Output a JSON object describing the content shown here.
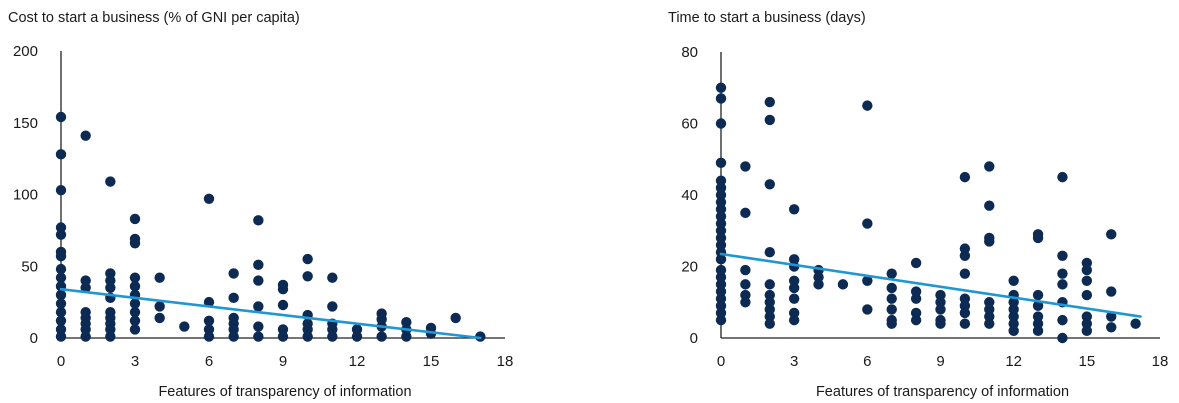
{
  "colors": {
    "point": "#0d2a52",
    "trend": "#1f97d4",
    "axis": "#222222",
    "text": "#1a1a1a"
  },
  "chart_data": [
    {
      "type": "scatter",
      "title": "Cost to start a business (% of GNI per capita)",
      "xlabel": "Features of transparency of information",
      "ylabel": "",
      "xlim": [
        0,
        18
      ],
      "ylim": [
        0,
        200
      ],
      "xticks": [
        0,
        3,
        6,
        9,
        12,
        15,
        18
      ],
      "yticks": [
        0,
        50,
        100,
        150,
        200
      ],
      "grid": false,
      "trendline": [
        [
          0,
          34
        ],
        [
          17,
          0
        ]
      ],
      "points": [
        [
          0,
          154
        ],
        [
          0,
          128
        ],
        [
          0,
          103
        ],
        [
          0,
          77
        ],
        [
          0,
          72
        ],
        [
          0,
          60
        ],
        [
          0,
          57
        ],
        [
          0,
          48
        ],
        [
          0,
          42
        ],
        [
          0,
          36
        ],
        [
          0,
          30
        ],
        [
          0,
          24
        ],
        [
          0,
          18
        ],
        [
          0,
          12
        ],
        [
          0,
          6
        ],
        [
          0,
          1
        ],
        [
          1,
          141
        ],
        [
          1,
          40
        ],
        [
          1,
          35
        ],
        [
          1,
          18
        ],
        [
          1,
          14
        ],
        [
          1,
          10
        ],
        [
          1,
          6
        ],
        [
          1,
          1
        ],
        [
          2,
          109
        ],
        [
          2,
          45
        ],
        [
          2,
          40
        ],
        [
          2,
          35
        ],
        [
          2,
          28
        ],
        [
          2,
          18
        ],
        [
          2,
          14
        ],
        [
          2,
          10
        ],
        [
          2,
          6
        ],
        [
          2,
          1
        ],
        [
          3,
          83
        ],
        [
          3,
          69
        ],
        [
          3,
          66
        ],
        [
          3,
          42
        ],
        [
          3,
          36
        ],
        [
          3,
          30
        ],
        [
          3,
          24
        ],
        [
          3,
          18
        ],
        [
          3,
          12
        ],
        [
          3,
          6
        ],
        [
          4,
          42
        ],
        [
          4,
          22
        ],
        [
          4,
          14
        ],
        [
          5,
          8
        ],
        [
          6,
          97
        ],
        [
          6,
          25
        ],
        [
          6,
          12
        ],
        [
          6,
          6
        ],
        [
          6,
          1
        ],
        [
          7,
          45
        ],
        [
          7,
          28
        ],
        [
          7,
          14
        ],
        [
          7,
          10
        ],
        [
          7,
          6
        ],
        [
          7,
          1
        ],
        [
          8,
          82
        ],
        [
          8,
          51
        ],
        [
          8,
          40
        ],
        [
          8,
          22
        ],
        [
          8,
          8
        ],
        [
          8,
          1
        ],
        [
          9,
          37
        ],
        [
          9,
          34
        ],
        [
          9,
          23
        ],
        [
          9,
          6
        ],
        [
          9,
          1
        ],
        [
          10,
          55
        ],
        [
          10,
          43
        ],
        [
          10,
          16
        ],
        [
          10,
          10
        ],
        [
          10,
          6
        ],
        [
          10,
          1
        ],
        [
          11,
          42
        ],
        [
          11,
          22
        ],
        [
          11,
          10
        ],
        [
          11,
          6
        ],
        [
          11,
          1
        ],
        [
          12,
          6
        ],
        [
          12,
          1
        ],
        [
          13,
          17
        ],
        [
          13,
          13
        ],
        [
          13,
          8
        ],
        [
          13,
          1
        ],
        [
          14,
          11
        ],
        [
          14,
          6
        ],
        [
          14,
          1
        ],
        [
          15,
          7
        ],
        [
          15,
          3
        ],
        [
          16,
          14
        ],
        [
          17,
          1
        ]
      ]
    },
    {
      "type": "scatter",
      "title": "Time to start a business (days)",
      "xlabel": "Features of transparency of information",
      "ylabel": "",
      "xlim": [
        0,
        18
      ],
      "ylim": [
        0,
        80
      ],
      "xticks": [
        0,
        3,
        6,
        9,
        12,
        15,
        18
      ],
      "yticks": [
        0,
        20,
        40,
        60,
        80
      ],
      "grid": false,
      "trendline": [
        [
          0,
          23.5
        ],
        [
          17.2,
          6
        ]
      ],
      "points": [
        [
          0,
          70
        ],
        [
          0,
          67
        ],
        [
          0,
          60
        ],
        [
          0,
          49
        ],
        [
          0,
          44
        ],
        [
          0,
          42
        ],
        [
          0,
          40
        ],
        [
          0,
          38
        ],
        [
          0,
          36
        ],
        [
          0,
          34
        ],
        [
          0,
          32
        ],
        [
          0,
          30
        ],
        [
          0,
          28
        ],
        [
          0,
          26
        ],
        [
          0,
          24
        ],
        [
          0,
          22
        ],
        [
          0,
          19
        ],
        [
          0,
          17
        ],
        [
          0,
          15
        ],
        [
          0,
          13
        ],
        [
          0,
          11
        ],
        [
          0,
          9
        ],
        [
          0,
          7
        ],
        [
          0,
          5
        ],
        [
          1,
          48
        ],
        [
          1,
          35
        ],
        [
          1,
          19
        ],
        [
          1,
          15
        ],
        [
          1,
          12
        ],
        [
          1,
          10
        ],
        [
          2,
          66
        ],
        [
          2,
          61
        ],
        [
          2,
          43
        ],
        [
          2,
          24
        ],
        [
          2,
          15
        ],
        [
          2,
          12
        ],
        [
          2,
          10
        ],
        [
          2,
          8
        ],
        [
          2,
          6
        ],
        [
          2,
          4
        ],
        [
          3,
          36
        ],
        [
          3,
          22
        ],
        [
          3,
          20
        ],
        [
          3,
          16
        ],
        [
          3,
          14
        ],
        [
          3,
          11
        ],
        [
          3,
          7
        ],
        [
          3,
          5
        ],
        [
          4,
          19
        ],
        [
          4,
          17
        ],
        [
          4,
          15
        ],
        [
          5,
          15
        ],
        [
          6,
          65
        ],
        [
          6,
          32
        ],
        [
          6,
          16
        ],
        [
          6,
          8
        ],
        [
          7,
          18
        ],
        [
          7,
          14
        ],
        [
          7,
          11
        ],
        [
          7,
          8
        ],
        [
          7,
          5
        ],
        [
          7,
          4
        ],
        [
          8,
          21
        ],
        [
          8,
          13
        ],
        [
          8,
          11
        ],
        [
          8,
          7
        ],
        [
          8,
          5
        ],
        [
          9,
          12
        ],
        [
          9,
          10
        ],
        [
          9,
          8
        ],
        [
          9,
          5
        ],
        [
          9,
          4
        ],
        [
          10,
          45
        ],
        [
          10,
          25
        ],
        [
          10,
          23
        ],
        [
          10,
          18
        ],
        [
          10,
          11
        ],
        [
          10,
          9
        ],
        [
          10,
          7
        ],
        [
          10,
          4
        ],
        [
          11,
          48
        ],
        [
          11,
          37
        ],
        [
          11,
          28
        ],
        [
          11,
          27
        ],
        [
          11,
          10
        ],
        [
          11,
          8
        ],
        [
          11,
          6
        ],
        [
          11,
          4
        ],
        [
          12,
          16
        ],
        [
          12,
          12
        ],
        [
          12,
          10
        ],
        [
          12,
          8
        ],
        [
          12,
          6
        ],
        [
          12,
          4
        ],
        [
          12,
          2
        ],
        [
          13,
          29
        ],
        [
          13,
          28
        ],
        [
          13,
          12
        ],
        [
          13,
          9
        ],
        [
          13,
          6
        ],
        [
          13,
          4
        ],
        [
          13,
          2
        ],
        [
          14,
          45
        ],
        [
          14,
          23
        ],
        [
          14,
          18
        ],
        [
          14,
          15
        ],
        [
          14,
          10
        ],
        [
          14,
          5
        ],
        [
          14,
          0
        ],
        [
          15,
          21
        ],
        [
          15,
          19
        ],
        [
          15,
          16
        ],
        [
          15,
          12
        ],
        [
          15,
          6
        ],
        [
          15,
          4
        ],
        [
          15,
          2
        ],
        [
          16,
          29
        ],
        [
          16,
          13
        ],
        [
          16,
          6
        ],
        [
          16,
          3
        ],
        [
          17,
          4
        ]
      ]
    }
  ]
}
